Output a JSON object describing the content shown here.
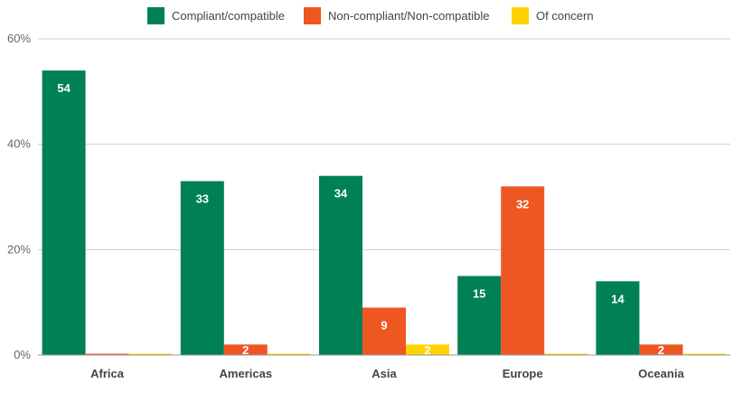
{
  "chart_data": {
    "type": "bar",
    "categories": [
      "Africa",
      "Americas",
      "Asia",
      "Europe",
      "Oceania"
    ],
    "series": [
      {
        "name": "Compliant/compatible",
        "color": "#008055",
        "values": [
          54,
          33,
          34,
          15,
          14
        ]
      },
      {
        "name": "Non-compliant/Non-compatible",
        "color": "#ee5622",
        "values": [
          0,
          2,
          9,
          32,
          2
        ]
      },
      {
        "name": "Of concern",
        "color": "#ffd200",
        "values": [
          0,
          0,
          2,
          0,
          0
        ]
      }
    ],
    "data_labels": [
      [
        "54",
        "33",
        "34",
        "15",
        "14"
      ],
      [
        "",
        "2",
        "9",
        "32",
        "2"
      ],
      [
        "",
        "",
        "2",
        "",
        ""
      ]
    ],
    "yticks": [
      "0%",
      "20%",
      "40%",
      "60%"
    ],
    "ylim": [
      0,
      60
    ],
    "grid": true,
    "legend_position": "top",
    "title": "",
    "xlabel": "",
    "ylabel": ""
  }
}
